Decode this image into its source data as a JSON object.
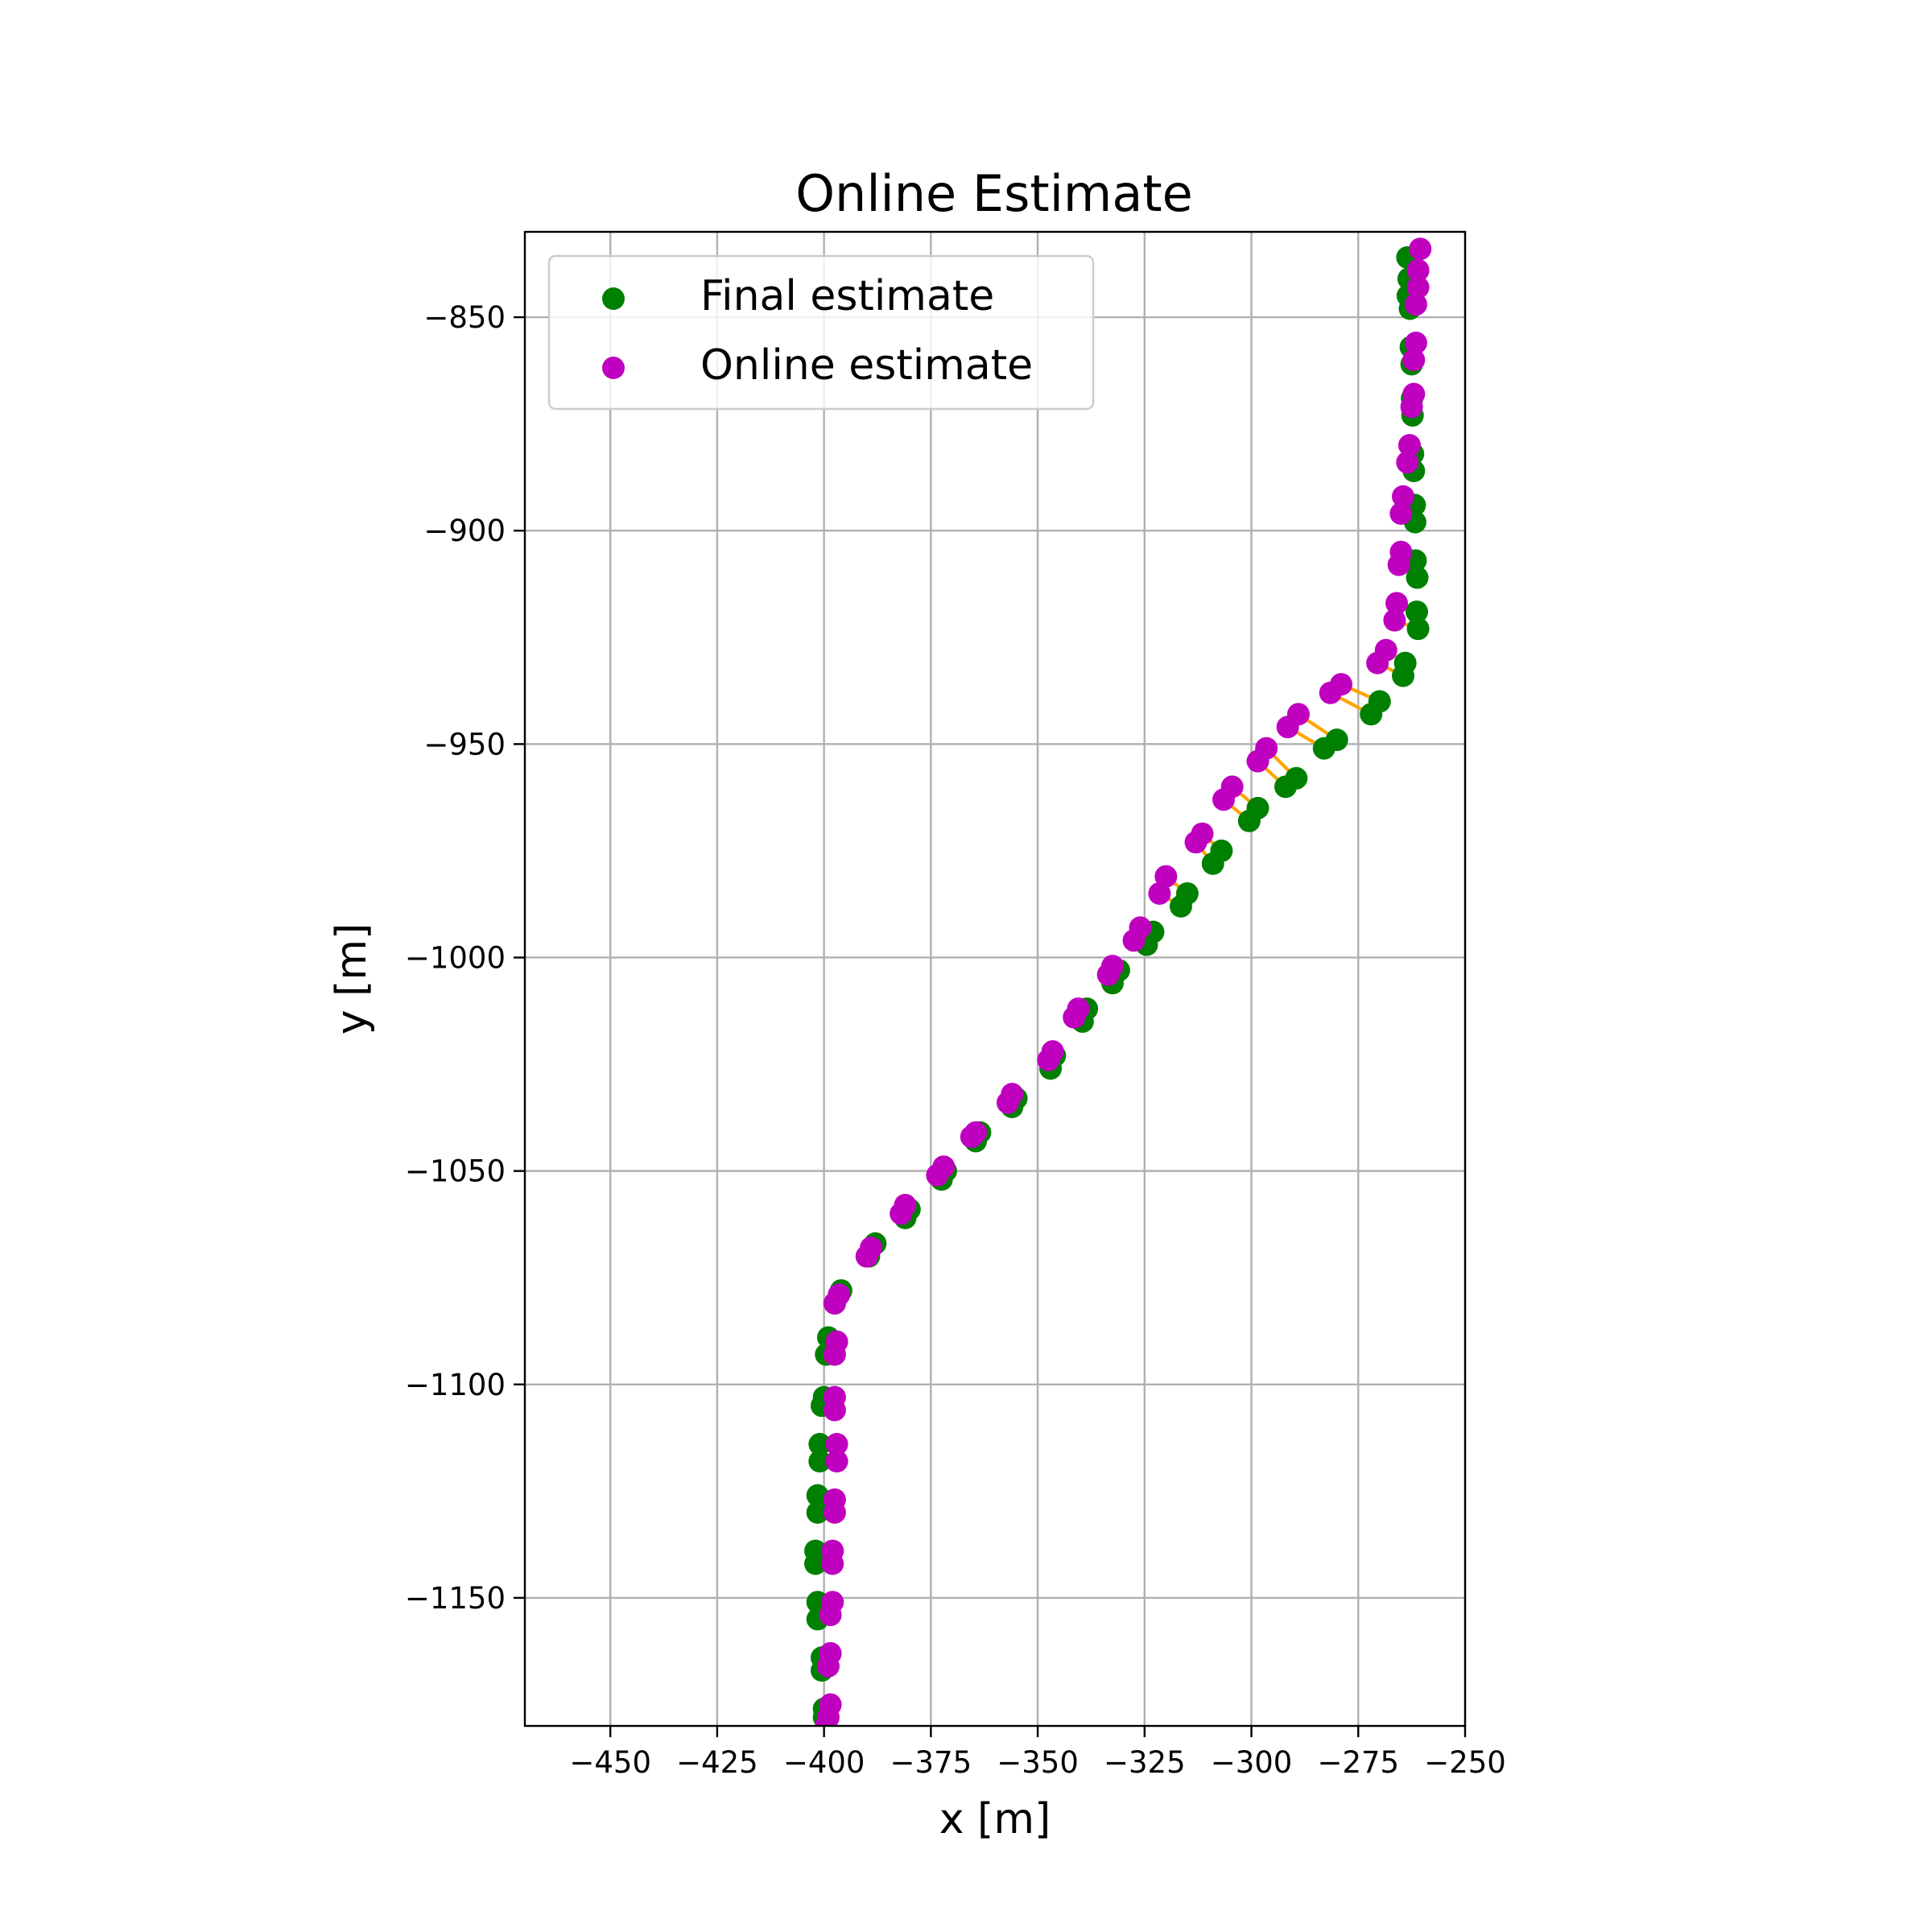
{
  "chart_data": {
    "type": "scatter",
    "title": "Online Estimate",
    "xlabel": "x [m]",
    "ylabel": "y [m]",
    "xlim": [
      -470,
      -250
    ],
    "ylim": [
      -1180,
      -830
    ],
    "xticks": [
      -450,
      -425,
      -400,
      -375,
      -350,
      -325,
      -300,
      -275,
      -250
    ],
    "yticks": [
      -850,
      -900,
      -950,
      -1000,
      -1050,
      -1100,
      -1150
    ],
    "xtick_labels": [
      "−450",
      "−425",
      "−400",
      "−375",
      "−350",
      "−325",
      "−300",
      "−275",
      "−250"
    ],
    "ytick_labels": [
      "−850",
      "−900",
      "−950",
      "−1000",
      "−1050",
      "−1100",
      "−1150"
    ],
    "grid": true,
    "legend": {
      "placement": "upper-left",
      "entries": [
        "Final estimate",
        "Online estimate"
      ]
    },
    "colors": {
      "final": "#008000",
      "online": "#bf00bf",
      "connector": "#ffa500"
    },
    "series": [
      {
        "name": "Final estimate",
        "x": [
          -263.5,
          -263.2,
          -263.4,
          -262.9,
          -262.7,
          -262.5,
          -262.4,
          -262.3,
          -262.2,
          -262.0,
          -261.8,
          -261.7,
          -261.6,
          -261.2,
          -261.3,
          -261.0,
          -264.0,
          -264.5,
          -270.0,
          -272.0,
          -280.0,
          -283.0,
          -289.5,
          -292.0,
          -298.5,
          -300.5,
          -307.0,
          -309.0,
          -315.0,
          -316.5,
          -323.0,
          -324.5,
          -331.0,
          -332.5,
          -338.5,
          -339.5,
          -346.0,
          -347.0,
          -355.0,
          -356.0,
          -363.5,
          -364.5,
          -371.5,
          -372.5,
          -380.0,
          -381.0,
          -388.0,
          -389.5,
          -396.0,
          -397.5,
          -399.0,
          -399.5,
          -400.0,
          -400.5,
          -401.0,
          -401.0,
          -401.5,
          -401.5,
          -402.0,
          -402.0,
          -401.5,
          -401.5,
          -400.5,
          -400.5,
          -400.0,
          -400.0,
          -399.5
        ],
        "y": [
          -836,
          -841,
          -845,
          -848,
          -857,
          -861,
          -869,
          -873,
          -882,
          -886,
          -894,
          -898,
          -907,
          -911,
          -919,
          -923,
          -931,
          -934,
          -940,
          -943,
          -949,
          -951,
          -958,
          -960,
          -965,
          -968,
          -975,
          -978,
          -985,
          -988,
          -994,
          -997,
          -1003,
          -1006,
          -1012,
          -1015,
          -1023,
          -1026,
          -1033,
          -1035,
          -1041,
          -1043,
          -1050,
          -1052,
          -1059,
          -1061,
          -1067,
          -1070,
          -1078,
          -1081,
          -1089,
          -1093,
          -1103,
          -1105,
          -1114,
          -1118,
          -1126,
          -1130,
          -1139,
          -1142,
          -1151,
          -1155,
          -1164,
          -1167,
          -1176,
          -1178,
          -1180
        ]
      },
      {
        "name": "Online estimate",
        "x": [
          -260.5,
          -261.0,
          -261.0,
          -261.5,
          -261.5,
          -262.0,
          -262.0,
          -262.5,
          -263.0,
          -263.5,
          -264.5,
          -265.0,
          -265.0,
          -265.5,
          -266.0,
          -266.5,
          -268.5,
          -270.5,
          -279.0,
          -281.5,
          -289.0,
          -291.5,
          -296.5,
          -298.5,
          -304.5,
          -306.5,
          -311.5,
          -313.0,
          -320.0,
          -321.5,
          -326.0,
          -327.5,
          -332.5,
          -333.5,
          -340.5,
          -341.5,
          -346.5,
          -347.5,
          -356.0,
          -357.0,
          -364.5,
          -365.5,
          -372.0,
          -373.5,
          -381.0,
          -382.0,
          -389.0,
          -390.0,
          -396.5,
          -397.5,
          -397.0,
          -397.5,
          -397.5,
          -397.5,
          -397.0,
          -397.0,
          -397.5,
          -397.5,
          -398.0,
          -398.0,
          -398.0,
          -398.5,
          -398.5,
          -399.0,
          -398.5,
          -399.0,
          -399.5
        ],
        "y": [
          -834,
          -839,
          -843,
          -847,
          -856,
          -860,
          -868,
          -871,
          -880,
          -884,
          -892,
          -896,
          -905,
          -908,
          -917,
          -921,
          -928,
          -931,
          -936,
          -938,
          -943,
          -946,
          -951,
          -954,
          -960,
          -963,
          -971,
          -973,
          -981,
          -985,
          -993,
          -996,
          -1002,
          -1004,
          -1012,
          -1014,
          -1022,
          -1024,
          -1032,
          -1034,
          -1041,
          -1042,
          -1049,
          -1051,
          -1058,
          -1060,
          -1068,
          -1070,
          -1079,
          -1081,
          -1090,
          -1093,
          -1103,
          -1106,
          -1114,
          -1118,
          -1127,
          -1130,
          -1139,
          -1142,
          -1151,
          -1154,
          -1163,
          -1166,
          -1175,
          -1178,
          -1180
        ]
      }
    ]
  }
}
